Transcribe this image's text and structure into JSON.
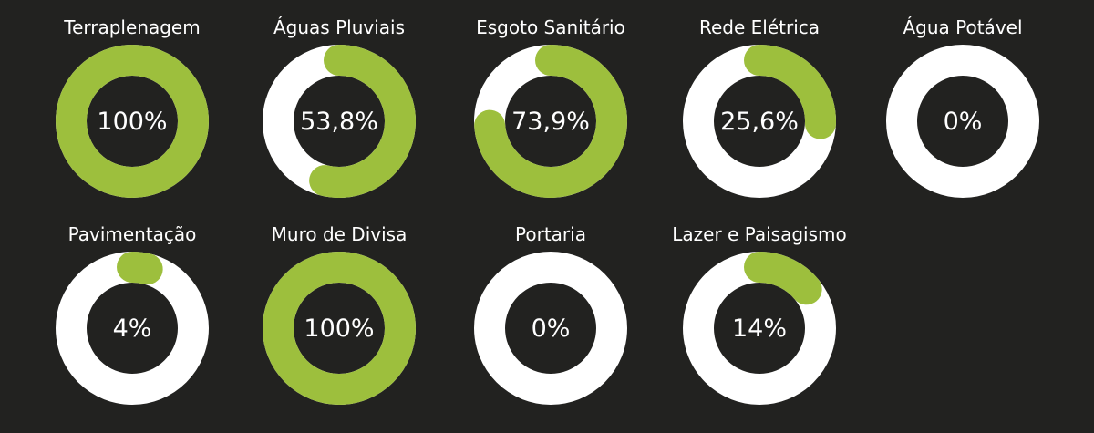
{
  "colors": {
    "background": "#222220",
    "track": "#ffffff",
    "progress": "#9dbf3d",
    "text": "#ffffff"
  },
  "chart_data": [
    {
      "type": "donut",
      "title": "Terraplenagem",
      "value": 100,
      "value_label": "100%"
    },
    {
      "type": "donut",
      "title": "Águas Pluviais",
      "value": 53.8,
      "value_label": "53,8%"
    },
    {
      "type": "donut",
      "title": "Esgoto Sanitário",
      "value": 73.9,
      "value_label": "73,9%"
    },
    {
      "type": "donut",
      "title": "Rede Elétrica",
      "value": 25.6,
      "value_label": "25,6%"
    },
    {
      "type": "donut",
      "title": "Água Potável",
      "value": 0,
      "value_label": "0%"
    },
    {
      "type": "donut",
      "title": "Pavimentação",
      "value": 4,
      "value_label": "4%"
    },
    {
      "type": "donut",
      "title": "Muro de Divisa",
      "value": 100,
      "value_label": "100%"
    },
    {
      "type": "donut",
      "title": "Portaria",
      "value": 0,
      "value_label": "0%"
    },
    {
      "type": "donut",
      "title": "Lazer e Paisagismo",
      "value": 14,
      "value_label": "14%"
    }
  ]
}
